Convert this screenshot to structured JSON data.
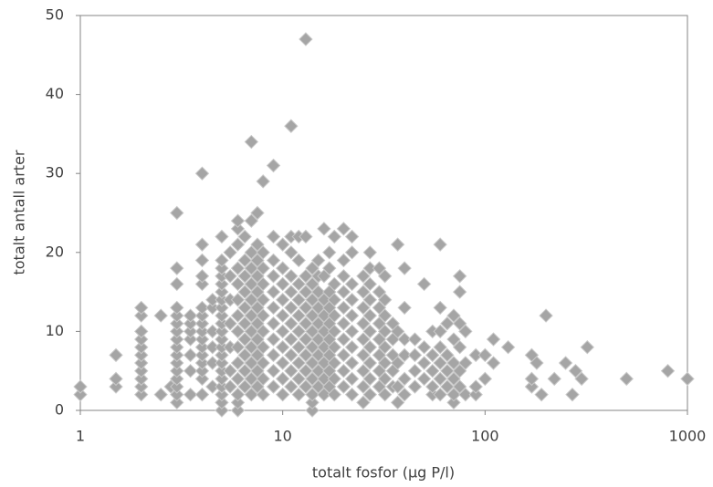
{
  "chart_data": {
    "type": "scatter",
    "xlabel": "totalt fosfor (µg P/l)",
    "ylabel": "totalt antall arter",
    "log_x": true,
    "grid": false,
    "color": "#a5a5a5",
    "xlim": [
      1,
      1000
    ],
    "xticks": [
      1,
      10,
      100,
      1000
    ],
    "ylim": [
      0,
      50
    ],
    "yticks": [
      0,
      10,
      20,
      30,
      40,
      50
    ],
    "x": [
      1,
      1,
      1.5,
      1.5,
      1.5,
      2,
      2,
      2,
      2,
      2,
      2,
      2,
      2,
      2,
      2,
      2,
      2.5,
      2.5,
      2.8,
      3,
      3,
      3,
      3,
      3,
      3,
      3,
      3,
      3,
      3,
      3,
      3,
      3,
      3,
      3,
      3,
      3.5,
      3.5,
      3.5,
      3.5,
      3.5,
      3.5,
      3.5,
      4,
      4,
      4,
      4,
      4,
      4,
      4,
      4,
      4,
      4,
      4,
      4,
      4,
      4,
      4,
      4,
      4.5,
      4.5,
      4.5,
      4.5,
      4.5,
      4.5,
      5,
      5,
      5,
      5,
      5,
      5,
      5,
      5,
      5,
      5,
      5,
      5,
      5,
      5,
      5,
      5,
      5,
      5,
      5,
      5,
      5,
      5.5,
      5.5,
      5.5,
      5.5,
      5.5,
      5.5,
      5.5,
      6,
      6,
      6,
      6,
      6,
      6,
      6,
      6,
      6,
      6,
      6,
      6,
      6,
      6,
      6.5,
      6.5,
      6.5,
      6.5,
      6.5,
      6.5,
      6.5,
      6.5,
      6.5,
      6.5,
      7,
      7,
      7,
      7,
      7,
      7,
      7,
      7,
      7,
      7,
      7,
      7,
      7.5,
      7.5,
      7.5,
      7.5,
      7.5,
      7.5,
      7.5,
      7.5,
      7.5,
      7.5,
      7.5,
      8,
      8,
      8,
      8,
      8,
      8,
      8,
      8,
      8,
      8,
      8,
      9,
      9,
      9,
      9,
      9,
      9,
      9,
      9,
      9,
      9,
      9,
      10,
      10,
      10,
      10,
      10,
      10,
      10,
      10,
      10,
      10,
      11,
      11,
      11,
      11,
      11,
      11,
      11,
      11,
      11,
      11,
      11,
      12,
      12,
      12,
      12,
      12,
      12,
      12,
      12,
      12,
      12,
      13,
      13,
      13,
      13,
      13,
      13,
      13,
      13,
      13,
      13,
      14,
      14,
      14,
      14,
      14,
      14,
      14,
      14,
      14,
      14,
      14,
      15,
      15,
      15,
      15,
      15,
      15,
      15,
      15,
      15,
      16,
      16,
      16,
      16,
      16,
      16,
      16,
      16,
      16,
      17,
      17,
      17,
      17,
      17,
      17,
      17,
      17,
      17,
      18,
      18,
      18,
      18,
      18,
      18,
      18,
      18,
      18,
      20,
      20,
      20,
      20,
      20,
      20,
      20,
      20,
      20,
      20,
      22,
      22,
      22,
      22,
      22,
      22,
      22,
      22,
      22,
      22,
      25,
      25,
      25,
      25,
      25,
      25,
      25,
      25,
      25,
      27,
      27,
      27,
      27,
      27,
      27,
      27,
      27,
      27,
      27,
      30,
      30,
      30,
      30,
      30,
      30,
      30,
      30,
      32,
      32,
      32,
      32,
      32,
      32,
      32,
      32,
      35,
      35,
      35,
      35,
      35,
      37,
      37,
      37,
      37,
      37,
      40,
      40,
      40,
      40,
      40,
      40,
      45,
      45,
      45,
      45,
      50,
      50,
      50,
      50,
      55,
      55,
      55,
      55,
      55,
      60,
      60,
      60,
      60,
      60,
      60,
      60,
      65,
      65,
      65,
      65,
      70,
      70,
      70,
      70,
      70,
      70,
      75,
      75,
      75,
      75,
      75,
      75,
      80,
      80,
      80,
      90,
      90,
      90,
      100,
      100,
      110,
      110,
      130,
      170,
      170,
      170,
      180,
      190,
      200,
      220,
      250,
      270,
      280,
      300,
      320,
      500,
      800,
      1000
    ],
    "values": [
      2,
      3,
      3,
      4,
      7,
      2,
      3,
      4,
      5,
      6,
      7,
      8,
      9,
      10,
      12,
      13,
      2,
      12,
      3,
      1,
      2,
      3,
      4,
      5,
      6,
      7,
      8,
      9,
      10,
      11,
      12,
      13,
      16,
      18,
      25,
      2,
      5,
      7,
      9,
      10,
      11,
      12,
      2,
      4,
      5,
      6,
      7,
      8,
      9,
      10,
      11,
      12,
      13,
      16,
      17,
      19,
      21,
      30,
      3,
      6,
      8,
      10,
      13,
      14,
      0,
      1,
      2,
      3,
      4,
      5,
      6,
      7,
      8,
      9,
      10,
      11,
      12,
      13,
      14,
      15,
      16,
      17,
      18,
      19,
      22,
      3,
      5,
      8,
      11,
      14,
      17,
      20,
      0,
      1,
      2,
      4,
      6,
      8,
      10,
      12,
      14,
      16,
      18,
      21,
      23,
      24,
      3,
      5,
      7,
      9,
      11,
      13,
      15,
      17,
      19,
      22,
      2,
      4,
      6,
      8,
      10,
      12,
      14,
      16,
      18,
      20,
      24,
      34,
      3,
      5,
      7,
      9,
      11,
      13,
      15,
      17,
      19,
      21,
      25,
      2,
      4,
      6,
      8,
      10,
      12,
      14,
      16,
      18,
      20,
      29,
      3,
      5,
      7,
      9,
      11,
      13,
      15,
      17,
      19,
      22,
      31,
      2,
      4,
      6,
      8,
      10,
      12,
      14,
      16,
      18,
      21,
      3,
      5,
      7,
      9,
      11,
      13,
      15,
      17,
      20,
      22,
      36,
      2,
      4,
      6,
      8,
      10,
      12,
      14,
      16,
      19,
      22,
      3,
      5,
      7,
      9,
      11,
      13,
      15,
      17,
      22,
      47,
      0,
      1,
      2,
      4,
      6,
      8,
      10,
      12,
      14,
      16,
      18,
      3,
      5,
      7,
      9,
      11,
      13,
      15,
      17,
      19,
      2,
      4,
      6,
      8,
      10,
      12,
      14,
      17,
      23,
      3,
      5,
      7,
      9,
      11,
      13,
      15,
      18,
      20,
      2,
      4,
      6,
      8,
      10,
      12,
      14,
      16,
      22,
      3,
      5,
      7,
      9,
      11,
      13,
      15,
      17,
      19,
      23,
      2,
      4,
      6,
      8,
      10,
      12,
      14,
      16,
      20,
      22,
      1,
      3,
      5,
      7,
      9,
      11,
      13,
      15,
      17,
      2,
      4,
      6,
      8,
      10,
      12,
      14,
      16,
      18,
      20,
      3,
      5,
      7,
      9,
      11,
      13,
      15,
      18,
      2,
      4,
      6,
      8,
      10,
      12,
      14,
      17,
      3,
      5,
      7,
      9,
      11,
      1,
      3,
      6,
      10,
      21,
      2,
      4,
      7,
      9,
      13,
      18,
      3,
      5,
      7,
      9,
      4,
      6,
      8,
      16,
      2,
      3,
      5,
      7,
      10,
      2,
      4,
      6,
      8,
      10,
      13,
      21,
      3,
      5,
      7,
      11,
      1,
      2,
      4,
      6,
      9,
      12,
      3,
      5,
      8,
      11,
      15,
      17,
      2,
      6,
      10,
      2,
      3,
      7,
      4,
      7,
      6,
      9,
      8,
      3,
      4,
      7,
      6,
      2,
      12,
      4,
      6,
      2,
      5,
      4,
      8,
      4,
      5,
      4
    ]
  }
}
